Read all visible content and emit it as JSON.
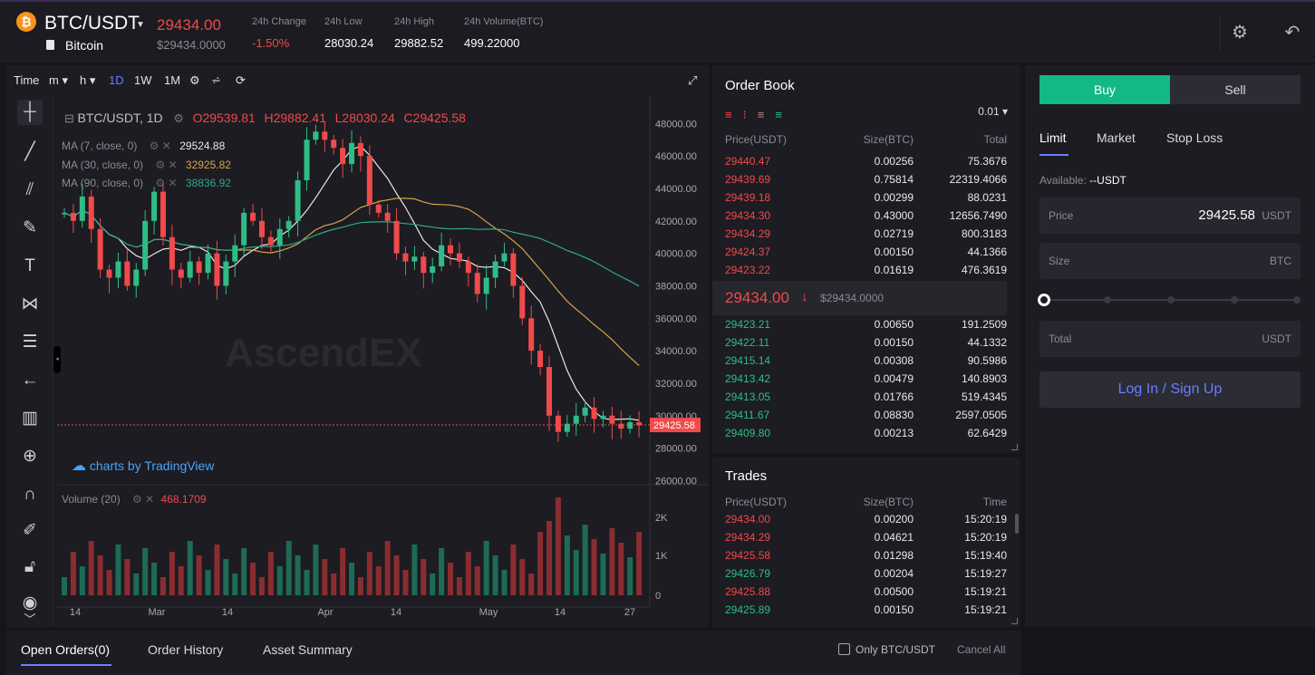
{
  "header": {
    "coin_symbol": "₿",
    "pair": "BTC/USDT",
    "coin_name": "Bitcoin",
    "last_price": "29434.00",
    "last_price_usd": "$29434.0000",
    "stats": [
      {
        "label": "24h Change",
        "value": "-1.50%",
        "color": "#f04a4a"
      },
      {
        "label": "24h Low",
        "value": "28030.24",
        "color": "#ffffff"
      },
      {
        "label": "24h High",
        "value": "29882.52",
        "color": "#ffffff"
      },
      {
        "label": "24h Volume(BTC)",
        "value": "499.22000",
        "color": "#ffffff"
      }
    ],
    "icons": [
      "gear-icon",
      "back-icon"
    ]
  },
  "chart_toolbar": [
    "Time",
    "m",
    "h",
    "1D",
    "1W",
    "1M"
  ],
  "chart_legend": {
    "symbol": "BTC/USDT, 1D",
    "open": "O29539.81",
    "high": "H29882.41",
    "low": "L28030.24",
    "close": "C29425.58",
    "ma7_label": "MA (7, close, 0)",
    "ma7_value": "29524.88",
    "ma30_label": "MA (30, close, 0)",
    "ma30_value": "32925.82",
    "ma90_label": "MA (90, close, 0)",
    "ma90_value": "38836.92",
    "volume_label": "Volume (20)",
    "volume_value": "468.1709",
    "watermark": "AscendEX",
    "branding": "charts by TradingView"
  },
  "chart_data": {
    "type": "candlestick",
    "price_axis": [
      "48000.00",
      "46000.00",
      "44000.00",
      "42000.00",
      "40000.00",
      "38000.00",
      "36000.00",
      "34000.00",
      "32000.00",
      "30000.00",
      "28000.00",
      "26000.00"
    ],
    "ylim": [
      25800,
      48800
    ],
    "current_price_label": "29425.58",
    "current_price": 29425.58,
    "volume_axis": [
      "2K",
      "1K",
      "0"
    ],
    "x_ticks": [
      "14",
      "Mar",
      "14",
      "Apr",
      "14",
      "May",
      "14",
      "27"
    ],
    "series": [
      {
        "name": "MA (7, close, 0)",
        "color": "#e8e8e8"
      },
      {
        "name": "MA (30, close, 0)",
        "color": "#d8a34a"
      },
      {
        "name": "MA (90, close, 0)",
        "color": "#2fa98a"
      }
    ]
  },
  "order_book": {
    "title": "Order Book",
    "precision": "0.01",
    "columns": [
      "Price(USDT)",
      "Size(BTC)",
      "Total"
    ],
    "asks": [
      [
        "29440.47",
        "0.00256",
        "75.3676"
      ],
      [
        "29439.69",
        "0.75814",
        "22319.4066"
      ],
      [
        "29439.18",
        "0.00299",
        "88.0231"
      ],
      [
        "29434.30",
        "0.43000",
        "12656.7490"
      ],
      [
        "29434.29",
        "0.02719",
        "800.3183"
      ],
      [
        "29424.37",
        "0.00150",
        "44.1366"
      ],
      [
        "29423.22",
        "0.01619",
        "476.3619"
      ]
    ],
    "mid_price": "29434.00",
    "mid_usd": "$29434.0000",
    "bids": [
      [
        "29423.21",
        "0.00650",
        "191.2509"
      ],
      [
        "29422.11",
        "0.00150",
        "44.1332"
      ],
      [
        "29415.14",
        "0.00308",
        "90.5986"
      ],
      [
        "29413.42",
        "0.00479",
        "140.8903"
      ],
      [
        "29413.05",
        "0.01766",
        "519.4345"
      ],
      [
        "29411.67",
        "0.08830",
        "2597.0505"
      ],
      [
        "29409.80",
        "0.00213",
        "62.6429"
      ]
    ]
  },
  "trades": {
    "title": "Trades",
    "columns": [
      "Price(USDT)",
      "Size(BTC)",
      "Time"
    ],
    "rows": [
      {
        "price": "29434.00",
        "size": "0.00200",
        "time": "15:20:19",
        "side": "sell"
      },
      {
        "price": "29434.29",
        "size": "0.04621",
        "time": "15:20:19",
        "side": "sell"
      },
      {
        "price": "29425.58",
        "size": "0.01298",
        "time": "15:19:40",
        "side": "sell"
      },
      {
        "price": "29426.79",
        "size": "0.00204",
        "time": "15:19:27",
        "side": "buy"
      },
      {
        "price": "29425.88",
        "size": "0.00500",
        "time": "15:19:21",
        "side": "sell"
      },
      {
        "price": "29425.89",
        "size": "0.00150",
        "time": "15:19:21",
        "side": "buy"
      }
    ]
  },
  "order_form": {
    "buy": "Buy",
    "sell": "Sell",
    "tabs": [
      "Limit",
      "Market",
      "Stop Loss"
    ],
    "available_label": "Available:",
    "available_value": "--USDT",
    "price_label": "Price",
    "price_value": "29425.58",
    "price_unit": "USDT",
    "size_label": "Size",
    "size_unit": "BTC",
    "total_label": "Total",
    "total_unit": "USDT",
    "login": "Log In / Sign Up"
  },
  "bottom_tabs": [
    "Open Orders(0)",
    "Order History",
    "Asset Summary"
  ],
  "bottom_right": {
    "only_label": "Only BTC/USDT",
    "cancel_all": "Cancel All"
  },
  "colors": {
    "up": "#2fbd85",
    "down": "#f04a4a",
    "accent": "#12b886",
    "link": "#6b7cff"
  }
}
